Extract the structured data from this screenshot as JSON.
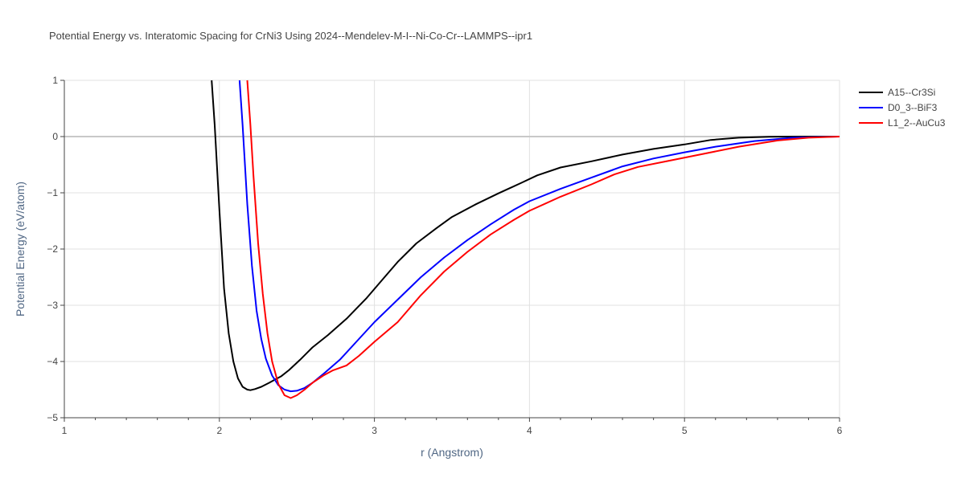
{
  "title": "Potential Energy vs. Interatomic Spacing for CrNi3 Using 2024--Mendelev-M-I--Ni-Co-Cr--LAMMPS--ipr1",
  "chart_data": {
    "type": "line",
    "xlabel": "r (Angstrom)",
    "ylabel": "Potential Energy (eV/atom)",
    "xlim": [
      1,
      6
    ],
    "ylim": [
      -5,
      1
    ],
    "xticks": [
      1,
      2,
      3,
      4,
      5,
      6
    ],
    "yticks": [
      -5,
      -4,
      -3,
      -2,
      -1,
      0,
      1
    ],
    "xtick_labels": [
      "1",
      "2",
      "3",
      "4",
      "5",
      "6"
    ],
    "ytick_labels": [
      "−5",
      "−4",
      "−3",
      "−2",
      "−1",
      "0",
      "1"
    ],
    "grid": true,
    "legend_position": "top-right",
    "series": [
      {
        "name": "A15--Cr3Si",
        "color": "#000000",
        "x": [
          1.95,
          1.97,
          2.0,
          2.03,
          2.06,
          2.09,
          2.12,
          2.15,
          2.18,
          2.2,
          2.23,
          2.27,
          2.32,
          2.36,
          2.4,
          2.45,
          2.52,
          2.6,
          2.7,
          2.82,
          2.95,
          3.05,
          3.15,
          3.27,
          3.4,
          3.5,
          3.65,
          3.8,
          3.95,
          4.05,
          4.2,
          4.4,
          4.6,
          4.8,
          5.0,
          5.17,
          5.35,
          5.55,
          5.75,
          6.0
        ],
        "y": [
          1.0,
          0.2,
          -1.3,
          -2.7,
          -3.5,
          -4.0,
          -4.3,
          -4.45,
          -4.5,
          -4.51,
          -4.49,
          -4.45,
          -4.38,
          -4.32,
          -4.26,
          -4.15,
          -3.97,
          -3.75,
          -3.53,
          -3.24,
          -2.87,
          -2.55,
          -2.23,
          -1.9,
          -1.63,
          -1.43,
          -1.21,
          -1.01,
          -0.82,
          -0.69,
          -0.55,
          -0.44,
          -0.32,
          -0.22,
          -0.14,
          -0.06,
          -0.02,
          -0.005,
          0.0,
          0.0
        ]
      },
      {
        "name": "D0_3--BiF3",
        "color": "#0000ff",
        "x": [
          2.13,
          2.15,
          2.18,
          2.21,
          2.24,
          2.27,
          2.3,
          2.34,
          2.38,
          2.42,
          2.46,
          2.5,
          2.55,
          2.6,
          2.68,
          2.78,
          2.9,
          3.0,
          3.15,
          3.3,
          3.45,
          3.6,
          3.75,
          3.9,
          4.0,
          4.2,
          4.4,
          4.6,
          4.8,
          5.0,
          5.2,
          5.45,
          5.7,
          6.0
        ],
        "y": [
          1.0,
          0.2,
          -1.2,
          -2.3,
          -3.1,
          -3.6,
          -3.95,
          -4.25,
          -4.42,
          -4.5,
          -4.53,
          -4.52,
          -4.47,
          -4.38,
          -4.2,
          -3.96,
          -3.6,
          -3.3,
          -2.9,
          -2.5,
          -2.15,
          -1.84,
          -1.56,
          -1.3,
          -1.15,
          -0.93,
          -0.73,
          -0.53,
          -0.39,
          -0.28,
          -0.18,
          -0.08,
          -0.02,
          0.0
        ]
      },
      {
        "name": "L1_2--AuCu3",
        "color": "#ff0000",
        "x": [
          2.18,
          2.2,
          2.22,
          2.25,
          2.28,
          2.31,
          2.34,
          2.38,
          2.42,
          2.46,
          2.5,
          2.55,
          2.6,
          2.67,
          2.73,
          2.82,
          2.9,
          3.0,
          3.15,
          3.3,
          3.45,
          3.6,
          3.75,
          3.9,
          4.0,
          4.2,
          4.4,
          4.55,
          4.7,
          4.9,
          5.1,
          5.35,
          5.6,
          5.8,
          6.0
        ],
        "y": [
          1.0,
          0.2,
          -0.7,
          -1.9,
          -2.8,
          -3.5,
          -4.0,
          -4.4,
          -4.6,
          -4.65,
          -4.6,
          -4.5,
          -4.38,
          -4.25,
          -4.16,
          -4.07,
          -3.9,
          -3.65,
          -3.3,
          -2.82,
          -2.4,
          -2.05,
          -1.74,
          -1.48,
          -1.32,
          -1.07,
          -0.85,
          -0.67,
          -0.54,
          -0.43,
          -0.32,
          -0.18,
          -0.07,
          -0.02,
          0.0
        ]
      }
    ]
  }
}
